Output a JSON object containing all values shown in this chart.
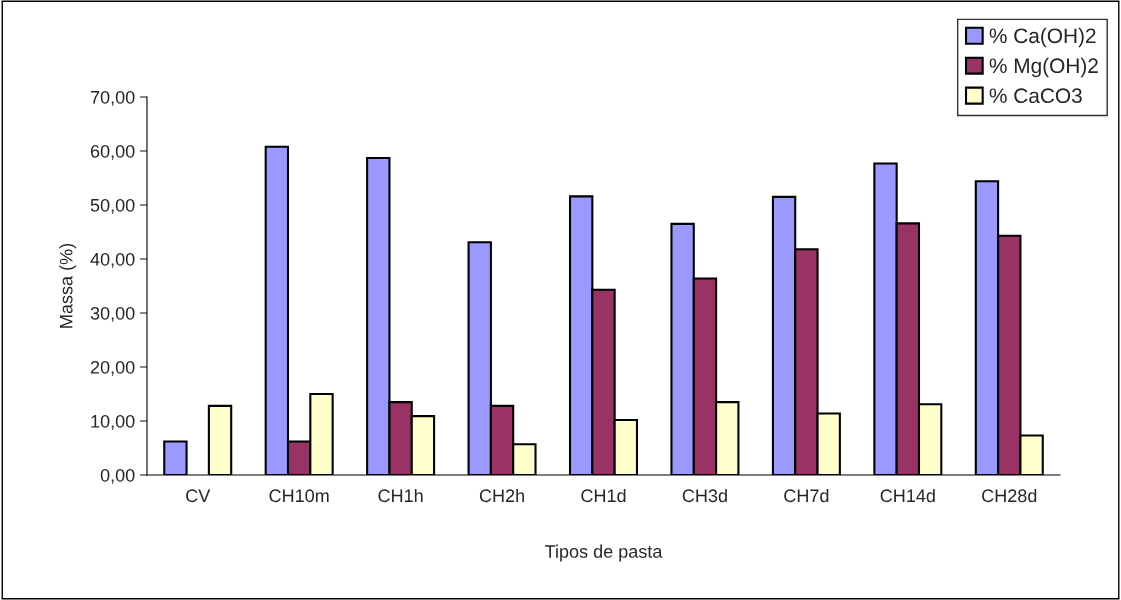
{
  "chart_data": {
    "type": "bar",
    "xlabel": "Tipos de pasta",
    "ylabel": "Massa (%)",
    "categories": [
      "CV",
      "CH10m",
      "CH1h",
      "CH2h",
      "CH1d",
      "CH3d",
      "CH7d",
      "CH14d",
      "CH28d"
    ],
    "series": [
      {
        "name": "% Ca(OH)2",
        "color": "#9999ff",
        "values": [
          6.2,
          60.8,
          58.7,
          43.1,
          51.6,
          46.5,
          51.5,
          57.7,
          54.4
        ]
      },
      {
        "name": "% Mg(OH)2",
        "color": "#993366",
        "values": [
          null,
          6.2,
          13.5,
          12.8,
          34.3,
          36.4,
          41.8,
          46.6,
          44.3
        ]
      },
      {
        "name": "% CaCO3",
        "color": "#ffffcc",
        "values": [
          12.8,
          15.0,
          10.9,
          5.7,
          10.2,
          13.5,
          11.4,
          13.1,
          7.3
        ]
      }
    ],
    "ylim": [
      0,
      70
    ],
    "yticks": [
      {
        "value": 0,
        "label": "0,00"
      },
      {
        "value": 10,
        "label": "10,00"
      },
      {
        "value": 20,
        "label": "20,00"
      },
      {
        "value": 30,
        "label": "30,00"
      },
      {
        "value": 40,
        "label": "40,00"
      },
      {
        "value": 50,
        "label": "50,00"
      },
      {
        "value": 60,
        "label": "60,00"
      },
      {
        "value": 70,
        "label": "70,00"
      }
    ],
    "grid": false,
    "legend": "top right"
  }
}
